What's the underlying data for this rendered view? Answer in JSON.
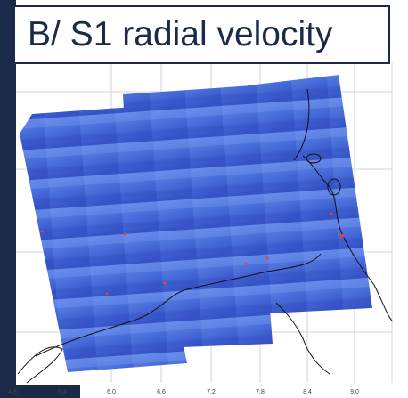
{
  "title": "B/ S1 radial velocity",
  "x_axis": {
    "labels": [
      "4.8",
      "5.4",
      "6.0",
      "6.6",
      "7.2",
      "7.8",
      "8.4",
      "9.0"
    ]
  }
}
